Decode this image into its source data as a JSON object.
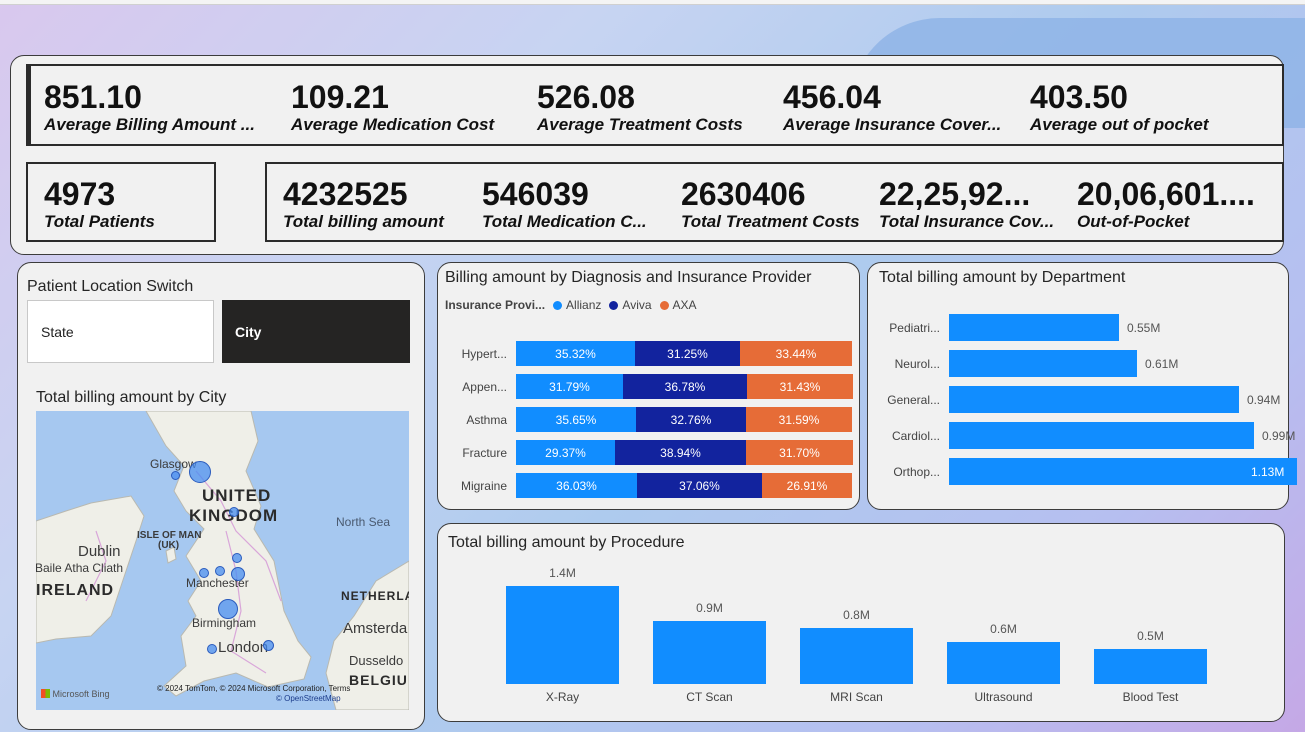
{
  "kpis_row1": [
    {
      "value": "851.10",
      "label": "Average Billing Amount ..."
    },
    {
      "value": "109.21",
      "label": "Average Medication Cost"
    },
    {
      "value": "526.08",
      "label": "Average Treatment Costs"
    },
    {
      "value": "456.04",
      "label": "Average Insurance Cover..."
    },
    {
      "value": "403.50",
      "label": "Average out of pocket"
    }
  ],
  "kpi_patients": {
    "value": "4973",
    "label": "Total Patients"
  },
  "kpis_row2": [
    {
      "value": "4232525",
      "label": "Total billing amount"
    },
    {
      "value": "546039",
      "label": "Total Medication C..."
    },
    {
      "value": "2630406",
      "label": "Total Treatment Costs"
    },
    {
      "value": "22,25,92...",
      "label": "Total Insurance Cov..."
    },
    {
      "value": "20,06,601....",
      "label": "Out-of-Pocket"
    }
  ],
  "slicer": {
    "title": "Patient Location Switch",
    "options": [
      "State",
      "City"
    ],
    "selected": "City"
  },
  "map": {
    "title": "Total billing amount by City",
    "labels": [
      "UNITED",
      "KINGDOM",
      "North Sea",
      "ISLE OF MAN",
      "(UK)",
      "Dublin",
      "Baile Atha Cliath",
      "IRELAND",
      "Glasgow",
      "Manchester",
      "Birmingham",
      "London",
      "NETHERLA",
      "Amsterda",
      "Dusseldo",
      "BELGIU"
    ],
    "attribution": "© 2024 TomTom, © 2024 Microsoft Corporation, Terms",
    "osm": "© OpenStreetMap",
    "bing": "Microsoft Bing"
  },
  "colors": {
    "allianz": "#118dff",
    "aviva": "#12239e",
    "axa": "#e66c37",
    "bar": "#118dff"
  },
  "chart_data": [
    {
      "type": "bar",
      "orientation": "horizontal",
      "stacked": "100%",
      "title": "Billing amount by Diagnosis and Insurance Provider",
      "legend_title": "Insurance Provi...",
      "categories": [
        "Hypert...",
        "Appen...",
        "Asthma",
        "Fracture",
        "Migraine"
      ],
      "series": [
        {
          "name": "Allianz",
          "values": [
            35.32,
            31.79,
            35.65,
            29.37,
            36.03
          ],
          "labels": [
            "35.32%",
            "31.79%",
            "35.65%",
            "29.37%",
            "36.03%"
          ]
        },
        {
          "name": "Aviva",
          "values": [
            31.25,
            36.78,
            32.76,
            38.94,
            37.06
          ],
          "labels": [
            "31.25%",
            "36.78%",
            "32.76%",
            "38.94%",
            "37.06%"
          ]
        },
        {
          "name": "AXA",
          "values": [
            33.44,
            31.43,
            31.59,
            31.7,
            26.91
          ],
          "labels": [
            "33.44%",
            "31.43%",
            "31.59%",
            "31.70%",
            "26.91%"
          ]
        }
      ]
    },
    {
      "type": "bar",
      "orientation": "horizontal",
      "title": "Total billing amount by Department",
      "categories": [
        "Pediatri...",
        "Neurol...",
        "General...",
        "Cardiol...",
        "Orthop..."
      ],
      "values": [
        0.55,
        0.61,
        0.94,
        0.99,
        1.13
      ],
      "labels": [
        "0.55M",
        "0.61M",
        "0.94M",
        "0.99M",
        "1.13M"
      ],
      "xlim": [
        0,
        1.2
      ]
    },
    {
      "type": "bar",
      "title": "Total billing amount by Procedure",
      "categories": [
        "X-Ray",
        "CT Scan",
        "MRI Scan",
        "Ultrasound",
        "Blood Test"
      ],
      "values": [
        1.4,
        0.9,
        0.8,
        0.6,
        0.5
      ],
      "labels": [
        "1.4M",
        "0.9M",
        "0.8M",
        "0.6M",
        "0.5M"
      ],
      "ylim": [
        0,
        1.6
      ]
    }
  ]
}
